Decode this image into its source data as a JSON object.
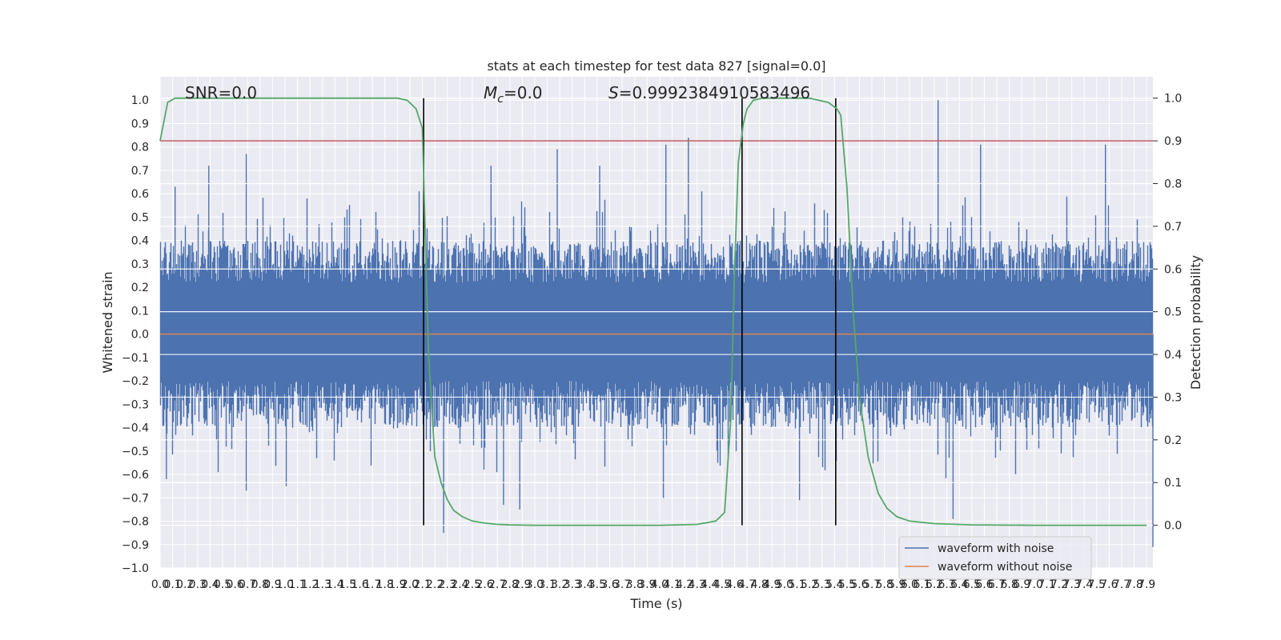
{
  "chart_data": {
    "type": "line",
    "title": "stats at each timestep for test data 827 [signal=0.0]",
    "xlabel": "Time (s)",
    "ylabel": "Whitened strain",
    "y2label": "Detection probability",
    "xlim": [
      0.0,
      7.95
    ],
    "ylim": [
      -1.0,
      1.1
    ],
    "y2lim": [
      -0.1,
      1.05
    ],
    "x_ticks": [
      0.0,
      0.1,
      0.2,
      0.3,
      0.4,
      0.5,
      0.6,
      0.7,
      0.8,
      0.9,
      1.0,
      1.1,
      1.2,
      1.3,
      1.4,
      1.5,
      1.6,
      1.7,
      1.8,
      1.9,
      2.0,
      2.1,
      2.2,
      2.3,
      2.4,
      2.5,
      2.6,
      2.7,
      2.8,
      2.9,
      3.0,
      3.1,
      3.2,
      3.3,
      3.4,
      3.5,
      3.6,
      3.7,
      3.8,
      3.9,
      4.0,
      4.1,
      4.2,
      4.3,
      4.4,
      4.5,
      4.6,
      4.7,
      4.8,
      4.9,
      5.0,
      5.1,
      5.2,
      5.3,
      5.4,
      5.5,
      5.6,
      5.7,
      5.8,
      5.9,
      6.0,
      6.1,
      6.2,
      6.3,
      6.4,
      6.5,
      6.6,
      6.7,
      6.8,
      6.9,
      7.0,
      7.1,
      7.2,
      7.3,
      7.4,
      7.5,
      7.6,
      7.7,
      7.8,
      7.9
    ],
    "y_ticks": [
      "−1.0",
      "−0.9",
      "−0.8",
      "−0.7",
      "−0.6",
      "−0.5",
      "−0.4",
      "−0.3",
      "−0.2",
      "−0.1",
      "0.0",
      "0.1",
      "0.2",
      "0.3",
      "0.4",
      "0.5",
      "0.6",
      "0.7",
      "0.8",
      "0.9",
      "1.0"
    ],
    "y_tick_values": [
      -1.0,
      -0.9,
      -0.8,
      -0.7,
      -0.6,
      -0.5,
      -0.4,
      -0.3,
      -0.2,
      -0.1,
      0.0,
      0.1,
      0.2,
      0.3,
      0.4,
      0.5,
      0.6,
      0.7,
      0.8,
      0.9,
      1.0
    ],
    "y2_ticks": [
      "0.0",
      "0.1",
      "0.2",
      "0.3",
      "0.4",
      "0.5",
      "0.6",
      "0.7",
      "0.8",
      "0.9",
      "1.0"
    ],
    "y2_tick_values": [
      0.0,
      0.1,
      0.2,
      0.3,
      0.4,
      0.5,
      0.6,
      0.7,
      0.8,
      0.9,
      1.0
    ],
    "annotations": {
      "snr_label": "SNR=0.0",
      "mc_symbol": "M",
      "mc_sub": "c",
      "mc_value": "=0.0",
      "s_symbol": "S",
      "s_value": "=0.9992384910583496"
    },
    "grid": true,
    "legend_position": "lower right",
    "series": [
      {
        "name": "waveform with noise",
        "color": "#4c72b0",
        "description": "dense noise trace, typical envelope",
        "envelope_upper": 0.4,
        "envelope_lower": -0.4,
        "peaks": [
          {
            "x": 0.12,
            "y": 0.63
          },
          {
            "x": 0.39,
            "y": 0.72
          },
          {
            "x": 0.69,
            "y": 0.77
          },
          {
            "x": 2.65,
            "y": 0.72
          },
          {
            "x": 3.18,
            "y": 0.79
          },
          {
            "x": 3.52,
            "y": 0.72
          },
          {
            "x": 4.05,
            "y": 0.81
          },
          {
            "x": 4.23,
            "y": 0.84
          },
          {
            "x": 6.23,
            "y": 1.0
          },
          {
            "x": 6.57,
            "y": 0.81
          },
          {
            "x": 7.57,
            "y": 0.81
          }
        ],
        "troughs": [
          {
            "x": 0.05,
            "y": -0.62
          },
          {
            "x": 0.69,
            "y": -0.67
          },
          {
            "x": 1.01,
            "y": -0.65
          },
          {
            "x": 2.27,
            "y": -0.85
          },
          {
            "x": 2.75,
            "y": -0.73
          },
          {
            "x": 2.88,
            "y": -0.75
          },
          {
            "x": 4.03,
            "y": -0.7
          },
          {
            "x": 5.12,
            "y": -0.71
          },
          {
            "x": 6.35,
            "y": -0.79
          },
          {
            "x": 7.95,
            "y": -0.91
          }
        ]
      },
      {
        "name": "waveform without noise",
        "color": "#dd8452",
        "x": [
          0.0,
          7.95
        ],
        "y": [
          0.0,
          0.0
        ]
      },
      {
        "name": "detection probability",
        "color": "#55a868",
        "axis": "right",
        "x": [
          0.0,
          0.06,
          0.12,
          0.25,
          0.5,
          1.0,
          1.5,
          1.9,
          1.98,
          2.05,
          2.1,
          2.15,
          2.2,
          2.25,
          2.3,
          2.35,
          2.42,
          2.5,
          2.6,
          2.7,
          2.8,
          3.0,
          3.5,
          4.0,
          4.3,
          4.45,
          4.52,
          4.57,
          4.6,
          4.63,
          4.67,
          4.7,
          4.75,
          4.82,
          4.9,
          5.0,
          5.2,
          5.35,
          5.42,
          5.45,
          5.5,
          5.55,
          5.6,
          5.67,
          5.75,
          5.82,
          5.9,
          6.0,
          6.2,
          6.5,
          7.0,
          7.5,
          7.9
        ],
        "y": [
          0.9,
          0.99,
          1.0,
          1.0,
          1.0,
          1.0,
          1.0,
          1.0,
          0.995,
          0.975,
          0.93,
          0.4,
          0.16,
          0.1,
          0.06,
          0.035,
          0.02,
          0.01,
          0.005,
          0.002,
          0.001,
          0.0,
          0.0,
          0.0,
          0.002,
          0.01,
          0.03,
          0.25,
          0.6,
          0.85,
          0.94,
          0.975,
          0.995,
          1.0,
          1.0,
          1.0,
          1.0,
          0.99,
          0.975,
          0.96,
          0.79,
          0.5,
          0.3,
          0.16,
          0.075,
          0.04,
          0.02,
          0.01,
          0.004,
          0.001,
          0.0,
          0.0,
          0.0
        ]
      },
      {
        "name": "threshold",
        "color": "#c44e52",
        "axis": "right",
        "y": 0.9
      },
      {
        "name": "window markers",
        "color": "#000000",
        "x": [
          2.11,
          4.66,
          5.41
        ]
      }
    ]
  },
  "legend": {
    "items": [
      {
        "label": "waveform with noise",
        "color": "#4c72b0"
      },
      {
        "label": "waveform without noise",
        "color": "#dd8452"
      }
    ]
  }
}
